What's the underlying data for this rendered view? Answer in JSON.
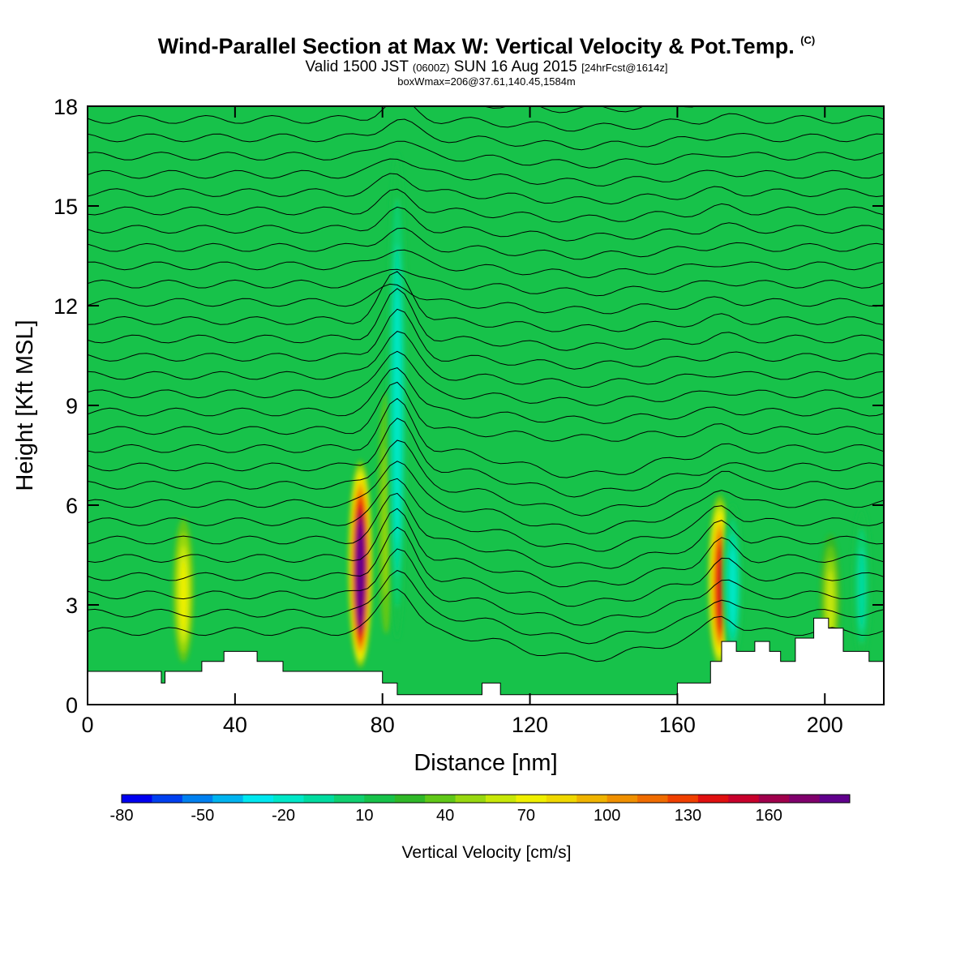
{
  "title": {
    "main": "Wind-Parallel Section at Max W: Vertical Velocity & Pot.Temp.",
    "copyright": "(C)",
    "valid_prefix": "Valid 1500 JST",
    "valid_utc": "(0600Z)",
    "valid_date": "SUN 16 Aug 2015",
    "forecast": "[24hrFcst@1614z]",
    "box": "boxWmax=206@37.61,140.45,1584m"
  },
  "colors": {
    "background_field": "#17c24a",
    "terrain": "#ffffff",
    "contour": "#000000"
  },
  "chart_data": {
    "type": "heatmap",
    "xlabel": "Distance [nm]",
    "ylabel": "Height [Kft MSL]",
    "xlim": [
      0,
      216
    ],
    "ylim": [
      0,
      18
    ],
    "xticks": [
      0,
      40,
      80,
      120,
      160,
      200
    ],
    "yticks": [
      0,
      3,
      6,
      9,
      12,
      15,
      18
    ],
    "colorbar": {
      "title": "Vertical Velocity [cm/s]",
      "labels": [
        "-80",
        "-50",
        "-20",
        "10",
        "40",
        "70",
        "100",
        "130",
        "160"
      ],
      "label_values": [
        -80,
        -50,
        -20,
        10,
        40,
        70,
        100,
        130,
        160
      ],
      "range": [
        -80,
        190
      ],
      "step": 10,
      "colors": [
        "#0000f0",
        "#0040f0",
        "#0080f0",
        "#00b4f0",
        "#00e8f0",
        "#00e8c8",
        "#00dca0",
        "#10d070",
        "#17c24a",
        "#30b828",
        "#60c818",
        "#98d810",
        "#c8e808",
        "#f0f000",
        "#f0d800",
        "#f0b400",
        "#f09000",
        "#f06c00",
        "#f04000",
        "#e01010",
        "#c8002c",
        "#a0004c",
        "#80006c",
        "#60008c"
      ]
    },
    "updraft_cores": [
      {
        "x": 74,
        "peak_cm_s": 160,
        "top_kft": 7.5
      },
      {
        "x": 171.5,
        "peak_cm_s": 110,
        "top_kft": 6.5
      },
      {
        "x": 26,
        "peak_cm_s": 50,
        "top_kft": 6.0
      },
      {
        "x": 201.5,
        "peak_cm_s": 45,
        "top_kft": 5.5
      },
      {
        "x": 81,
        "peak_cm_s": 30,
        "top_kft": 11.0
      }
    ],
    "downdraft_cores": [
      {
        "x": 84,
        "min_cm_s": -30,
        "top_kft": 18.0
      },
      {
        "x": 175,
        "min_cm_s": -25,
        "top_kft": 6.5
      },
      {
        "x": 210,
        "min_cm_s": -20,
        "top_kft": 6.5
      }
    ],
    "terrain_kft": [
      [
        0,
        1.0
      ],
      [
        20,
        1.0
      ],
      [
        20,
        0.65
      ],
      [
        21,
        0.65
      ],
      [
        21,
        1.0
      ],
      [
        31,
        1.0
      ],
      [
        31,
        1.3
      ],
      [
        37,
        1.3
      ],
      [
        37,
        1.6
      ],
      [
        46,
        1.6
      ],
      [
        46,
        1.3
      ],
      [
        53,
        1.3
      ],
      [
        53,
        1.0
      ],
      [
        80,
        1.0
      ],
      [
        80,
        0.65
      ],
      [
        84,
        0.65
      ],
      [
        84,
        0.3
      ],
      [
        107,
        0.3
      ],
      [
        107,
        0.65
      ],
      [
        112,
        0.65
      ],
      [
        112,
        0.3
      ],
      [
        160,
        0.3
      ],
      [
        160,
        0.65
      ],
      [
        169,
        0.65
      ],
      [
        169,
        1.3
      ],
      [
        172,
        1.3
      ],
      [
        172,
        1.9
      ],
      [
        176,
        1.9
      ],
      [
        176,
        1.6
      ],
      [
        181,
        1.6
      ],
      [
        181,
        1.9
      ],
      [
        185,
        1.9
      ],
      [
        185,
        1.6
      ],
      [
        188,
        1.6
      ],
      [
        188,
        1.3
      ],
      [
        192,
        1.3
      ],
      [
        192,
        2.0
      ],
      [
        197,
        2.0
      ],
      [
        197,
        2.6
      ],
      [
        201,
        2.6
      ],
      [
        201,
        2.3
      ],
      [
        205,
        2.3
      ],
      [
        205,
        1.6
      ],
      [
        212,
        1.6
      ],
      [
        212,
        1.3
      ],
      [
        216,
        1.3
      ]
    ]
  }
}
